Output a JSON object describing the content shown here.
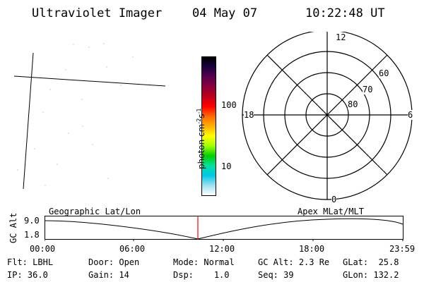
{
  "header": {
    "title": "Ultraviolet Imager",
    "date": "04 May 07",
    "time": "10:22:48 UT"
  },
  "colorbar": {
    "label": "photon cm⁻²s⁻¹",
    "label_main": "photon cm",
    "sup1": "-2",
    "mid": "s",
    "sup2": "-1",
    "ticks": [
      "100",
      "10"
    ],
    "scale": "log",
    "colors": [
      "#000000",
      "#1a0040",
      "#5a0050",
      "#8a003a",
      "#c0001a",
      "#ff0000",
      "#ff6a00",
      "#ffb000",
      "#ffff00",
      "#a0ff00",
      "#00d000",
      "#00e0a0",
      "#00c8e8",
      "#a0e0f0",
      "#ffffff"
    ]
  },
  "polar_plot": {
    "mlt_labels": {
      "top": "12",
      "left": "18",
      "right": "6",
      "bottom": "0"
    },
    "lat_labels": [
      "60",
      "70",
      "80"
    ]
  },
  "ephemeris": {
    "ylabel": "GC Alt",
    "yticks": [
      "9.0",
      "1.8"
    ],
    "left_title": "Geographic Lat/Lon",
    "right_title": "Apex  MLat/MLT",
    "xticks": [
      "00:00",
      "06:00",
      "12:00",
      "18:00",
      "23:59"
    ],
    "current_time_marker": "10:22:48",
    "marker_color": "#ff0000"
  },
  "status": {
    "flt_label": "Flt:",
    "flt_value": "LBHL",
    "ip_label": "IP:",
    "ip_value": "36.0",
    "door_label": "Door:",
    "door_value": "Open",
    "gain_label": "Gain:",
    "gain_value": "14",
    "mode_label": "Mode:",
    "mode_value": "Normal",
    "dsp_label": "Dsp:",
    "dsp_value": "1.0",
    "gcalt_label": "GC Alt:",
    "gcalt_value": "2.3 Re",
    "seq_label": "Seq:",
    "seq_value": "39",
    "glat_label": "GLat:",
    "glat_value": "25.8",
    "glon_label": "GLon:",
    "glon_value": "132.2"
  }
}
